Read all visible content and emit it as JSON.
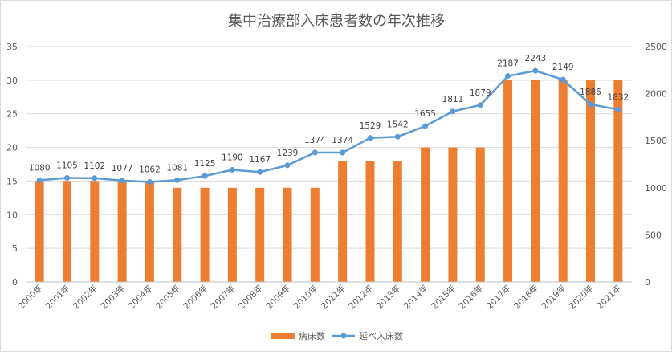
{
  "chart_data": {
    "type": "bar+line",
    "title": "集中治療部入床患者数の年次推移",
    "categories": [
      "2000年",
      "2001年",
      "2002年",
      "2003年",
      "2004年",
      "2005年",
      "2006年",
      "2007年",
      "2008年",
      "2009年",
      "2010年",
      "2011年",
      "2012年",
      "2013年",
      "2014年",
      "2015年",
      "2016年",
      "2017年",
      "2018年",
      "2019年",
      "2020年",
      "2021年"
    ],
    "series": [
      {
        "name": "病床数",
        "type": "bar",
        "axis": "left",
        "color": "#ed7d31",
        "values": [
          15,
          15,
          15,
          15,
          15,
          14,
          14,
          14,
          14,
          14,
          14,
          18,
          18,
          18,
          20,
          20,
          20,
          30,
          30,
          30,
          30,
          30
        ]
      },
      {
        "name": "延べ入床数",
        "type": "line",
        "axis": "right",
        "color": "#5b9bd5",
        "values": [
          1080,
          1105,
          1102,
          1077,
          1062,
          1081,
          1125,
          1190,
          1167,
          1239,
          1374,
          1374,
          1529,
          1542,
          1655,
          1811,
          1879,
          2187,
          2243,
          2149,
          1886,
          1832
        ]
      }
    ],
    "y_left": {
      "range": [
        0,
        35
      ],
      "ticks": [
        0,
        5,
        10,
        15,
        20,
        25,
        30,
        35
      ]
    },
    "y_right": {
      "range": [
        0,
        2500
      ],
      "ticks": [
        0,
        500,
        1000,
        1500,
        2000,
        2500
      ]
    },
    "grid": true,
    "legend_position": "bottom"
  }
}
